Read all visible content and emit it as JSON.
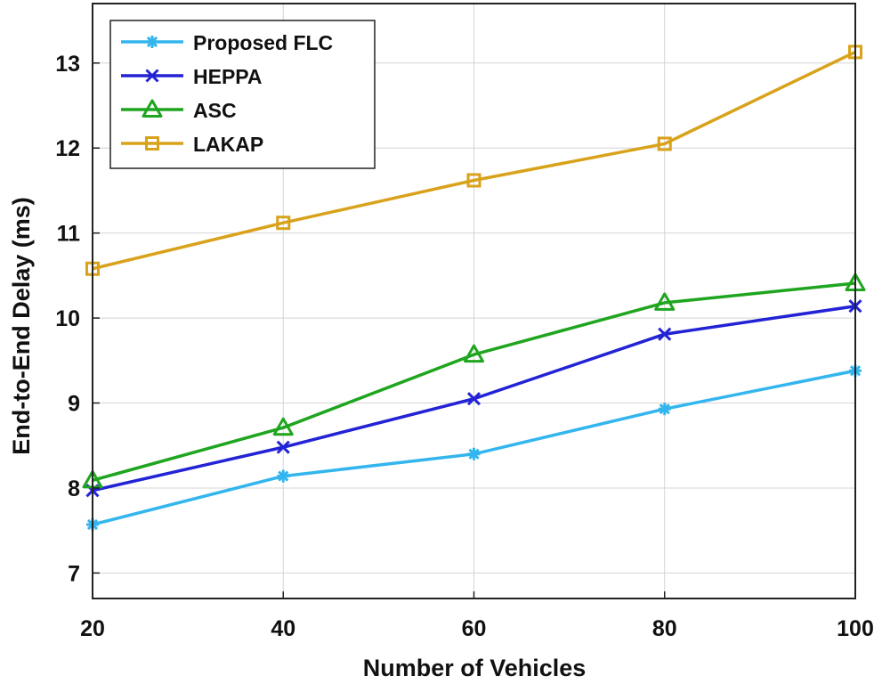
{
  "chart_data": {
    "type": "line",
    "xlabel": "Number of Vehicles",
    "ylabel": "End-to-End Delay (ms)",
    "x": [
      20,
      40,
      60,
      80,
      100
    ],
    "xlim": [
      20,
      100
    ],
    "ylim": [
      6.7,
      13.7
    ],
    "xticks": [
      20,
      40,
      60,
      80,
      100
    ],
    "yticks": [
      7,
      8,
      9,
      10,
      11,
      12,
      13
    ],
    "grid": true,
    "legend_position": "top-left",
    "series": [
      {
        "name": "Proposed FLC",
        "color": "#33b5ee",
        "marker": "asterisk",
        "values": [
          7.57,
          8.14,
          8.4,
          8.93,
          9.38
        ]
      },
      {
        "name": "HEPPA",
        "color": "#2323d6",
        "marker": "x",
        "values": [
          7.97,
          8.48,
          9.05,
          9.81,
          10.14
        ]
      },
      {
        "name": "ASC",
        "color": "#1fa51f",
        "marker": "triangle",
        "values": [
          8.09,
          8.71,
          9.57,
          10.18,
          10.41
        ]
      },
      {
        "name": "LAKAP",
        "color": "#d9a21b",
        "marker": "square",
        "values": [
          10.58,
          11.12,
          11.62,
          12.05,
          13.13
        ]
      }
    ]
  }
}
